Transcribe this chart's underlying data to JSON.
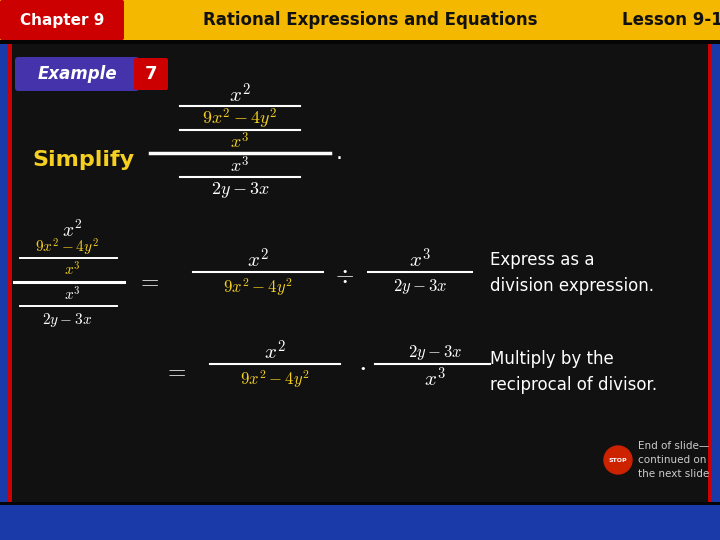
{
  "bg_color": "#111111",
  "header_bg": "#f5b800",
  "header_red_bg": "#cc0000",
  "chapter_text": "Chapter 9",
  "header_title": "Rational Expressions and Equations",
  "lesson_text": "Lesson 9-1",
  "example_label": "Example",
  "example_number": "7",
  "simplify_label": "Simplify",
  "expr_color": "#ffffff",
  "yellow_color": "#f5d020",
  "simplify_color": "#f5d020",
  "text_color": "#ffffff",
  "note1": "Express as a\ndivision expression.",
  "note2": "Multiply by the\nreciprocal of divisor.",
  "end_note": "End of slide—\ncontinued on\nthe next slide",
  "border_blue": "#1a3aaa",
  "footer_blue": "#1a3aaa",
  "frame_red": "#cc0000"
}
